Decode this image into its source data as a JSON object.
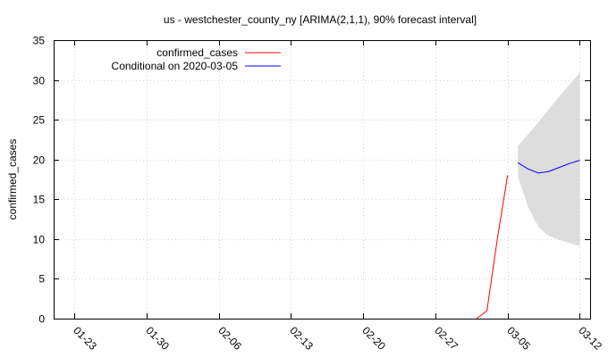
{
  "chart_data": {
    "type": "line",
    "title": "us - westchester_county_ny [ARIMA(2,1,1), 90% forecast interval]",
    "xlabel": "",
    "ylabel": "confirmed_cases",
    "x_tick_labels": [
      "01-23",
      "01-30",
      "02-06",
      "02-13",
      "02-20",
      "02-27",
      "03-05",
      "03-12"
    ],
    "x_tick_dates": [
      "2020-01-23",
      "2020-01-30",
      "2020-02-06",
      "2020-02-13",
      "2020-02-20",
      "2020-02-27",
      "2020-03-05",
      "2020-03-12"
    ],
    "xlim": [
      "2020-01-21",
      "2020-03-13"
    ],
    "ylim": [
      0,
      35
    ],
    "y_ticks": [
      0,
      5,
      10,
      15,
      20,
      25,
      30,
      35
    ],
    "grid": true,
    "legend_position": "top-left",
    "series": [
      {
        "name": "confirmed_cases",
        "color": "#ff0000",
        "points": [
          {
            "x": "2020-03-02",
            "y": 0
          },
          {
            "x": "2020-03-03",
            "y": 1
          },
          {
            "x": "2020-03-04",
            "y": 10
          },
          {
            "x": "2020-03-05",
            "y": 18
          }
        ]
      },
      {
        "name": "Conditional on 2020-03-05",
        "color": "#0000ff",
        "points": [
          {
            "x": "2020-03-06",
            "y": 19.6
          },
          {
            "x": "2020-03-07",
            "y": 18.8
          },
          {
            "x": "2020-03-08",
            "y": 18.3
          },
          {
            "x": "2020-03-09",
            "y": 18.5
          },
          {
            "x": "2020-03-10",
            "y": 19.0
          },
          {
            "x": "2020-03-11",
            "y": 19.5
          },
          {
            "x": "2020-03-12",
            "y": 19.9
          }
        ]
      }
    ],
    "forecast_interval": {
      "color": "#dddddd",
      "points": [
        {
          "x": "2020-03-06",
          "lower": 17.8,
          "upper": 21.7
        },
        {
          "x": "2020-03-07",
          "lower": 14.0,
          "upper": 23.2
        },
        {
          "x": "2020-03-08",
          "lower": 11.5,
          "upper": 24.7
        },
        {
          "x": "2020-03-09",
          "lower": 10.4,
          "upper": 26.3
        },
        {
          "x": "2020-03-10",
          "lower": 9.9,
          "upper": 27.9
        },
        {
          "x": "2020-03-11",
          "lower": 9.5,
          "upper": 29.4
        },
        {
          "x": "2020-03-12",
          "lower": 9.1,
          "upper": 30.9
        }
      ]
    }
  }
}
